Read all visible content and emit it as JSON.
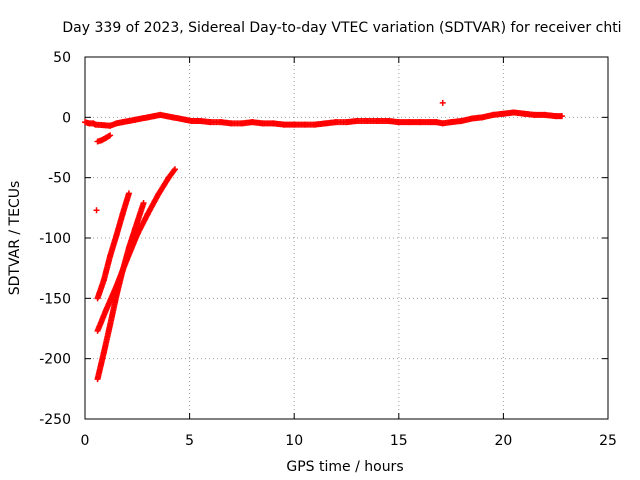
{
  "chart_data": {
    "type": "scatter",
    "title": "Day 339 of 2023, Sidereal Day-to-day VTEC variation (SDTVAR) for receiver chti",
    "xlabel": "GPS time / hours",
    "ylabel": "SDTVAR / TECUs",
    "xlim": [
      0,
      25
    ],
    "ylim": [
      -250,
      50
    ],
    "x_ticks": [
      0,
      5,
      10,
      15,
      20,
      25
    ],
    "y_ticks": [
      -250,
      -200,
      -150,
      -100,
      -50,
      0,
      50
    ],
    "grid": true,
    "marker": "+",
    "color": "#ff0000",
    "series": [
      {
        "values_description": "main band near zero",
        "points": [
          [
            0.0,
            -4
          ],
          [
            0.2,
            -5
          ],
          [
            0.4,
            -5
          ],
          [
            0.5,
            -6
          ],
          [
            1.2,
            -7
          ],
          [
            1.5,
            -5
          ],
          [
            1.8,
            -4
          ],
          [
            2.1,
            -3
          ],
          [
            2.4,
            -2
          ],
          [
            2.7,
            -1
          ],
          [
            3.0,
            0
          ],
          [
            3.3,
            1
          ],
          [
            3.6,
            2
          ],
          [
            3.9,
            1
          ],
          [
            4.2,
            0
          ],
          [
            4.5,
            -1
          ],
          [
            4.8,
            -2
          ],
          [
            5.1,
            -3
          ],
          [
            5.5,
            -3
          ],
          [
            6.0,
            -4
          ],
          [
            6.5,
            -4
          ],
          [
            7.0,
            -5
          ],
          [
            7.5,
            -5
          ],
          [
            8.0,
            -4
          ],
          [
            8.5,
            -5
          ],
          [
            9.0,
            -5
          ],
          [
            9.5,
            -6
          ],
          [
            10.0,
            -6
          ],
          [
            10.5,
            -6
          ],
          [
            11.0,
            -6
          ],
          [
            11.5,
            -5
          ],
          [
            12.0,
            -4
          ],
          [
            12.5,
            -4
          ],
          [
            13.0,
            -3
          ],
          [
            13.5,
            -3
          ],
          [
            14.0,
            -3
          ],
          [
            14.5,
            -3
          ],
          [
            15.0,
            -4
          ],
          [
            15.5,
            -4
          ],
          [
            16.0,
            -4
          ],
          [
            16.5,
            -4
          ],
          [
            16.8,
            -4
          ],
          [
            17.1,
            -5
          ],
          [
            17.5,
            -4
          ],
          [
            18.0,
            -3
          ],
          [
            18.5,
            -1
          ],
          [
            19.0,
            0
          ],
          [
            19.5,
            2
          ],
          [
            20.0,
            3
          ],
          [
            20.5,
            4
          ],
          [
            21.0,
            3
          ],
          [
            21.5,
            2
          ],
          [
            22.0,
            2
          ],
          [
            22.5,
            1
          ],
          [
            22.8,
            1
          ]
        ]
      },
      {
        "values_description": "short segment near -15 to -20",
        "points": [
          [
            0.6,
            -20
          ],
          [
            0.8,
            -19
          ],
          [
            1.0,
            -17
          ],
          [
            1.2,
            -15
          ]
        ]
      },
      {
        "values_description": "curve from -150 at 0.6h to -63 at 2.1h",
        "points": [
          [
            0.6,
            -150
          ],
          [
            0.9,
            -135
          ],
          [
            1.2,
            -115
          ],
          [
            1.5,
            -98
          ],
          [
            1.8,
            -80
          ],
          [
            2.1,
            -63
          ]
        ]
      },
      {
        "values_description": "curve from -177 at 0.6h to -43 at 4.3h",
        "points": [
          [
            0.6,
            -177
          ],
          [
            1.0,
            -160
          ],
          [
            1.5,
            -140
          ],
          [
            2.0,
            -118
          ],
          [
            2.5,
            -97
          ],
          [
            3.0,
            -80
          ],
          [
            3.5,
            -64
          ],
          [
            4.0,
            -50
          ],
          [
            4.3,
            -43
          ]
        ]
      },
      {
        "values_description": "curve from -217 at 0.6h to -71 at 2.8h",
        "points": [
          [
            0.6,
            -217
          ],
          [
            0.9,
            -195
          ],
          [
            1.2,
            -172
          ],
          [
            1.5,
            -148
          ],
          [
            1.8,
            -127
          ],
          [
            2.1,
            -108
          ],
          [
            2.4,
            -92
          ],
          [
            2.8,
            -71
          ]
        ]
      },
      {
        "values_description": "isolated points",
        "points": [
          [
            0.55,
            -77
          ],
          [
            17.1,
            12
          ]
        ]
      }
    ]
  }
}
